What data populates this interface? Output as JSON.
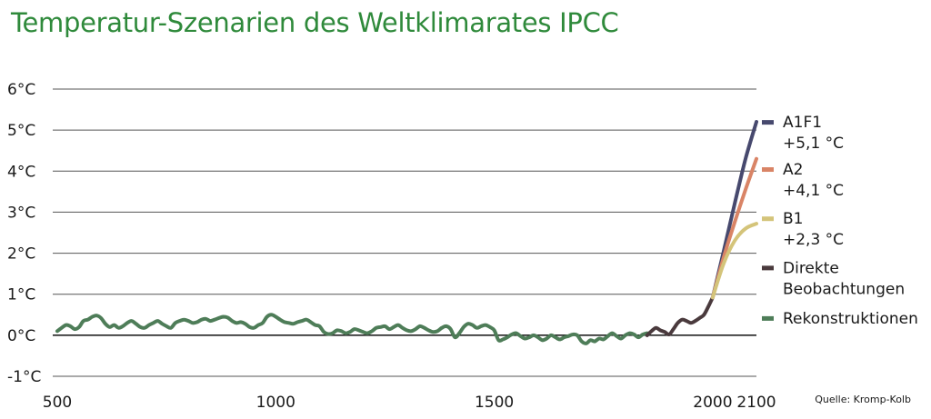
{
  "title": "Temperatur-Szenarien des Weltklimarates IPCC",
  "source": "Quelle: Kromp-Kolb",
  "colors": {
    "title": "#2f8a3b",
    "reconstruction": "#4e7d58",
    "observation": "#4a3a3d",
    "A1F1": "#47496e",
    "A2": "#d98466",
    "B1": "#d4c47a",
    "grid": "#333333"
  },
  "chart_data": {
    "type": "line",
    "title": "Temperatur-Szenarien des Weltklimarates IPCC",
    "xlabel": "",
    "ylabel": "",
    "xlim": [
      500,
      2100
    ],
    "ylim": [
      -1,
      6
    ],
    "x_ticks": [
      {
        "value": 500,
        "label": "500"
      },
      {
        "value": 1000,
        "label": "1000"
      },
      {
        "value": 1500,
        "label": "1500"
      },
      {
        "value": 2000,
        "label": "2000"
      },
      {
        "value": 2100,
        "label": "2100"
      }
    ],
    "y_ticks": [
      {
        "value": -1,
        "label": "-1°C"
      },
      {
        "value": 0,
        "label": "0°C"
      },
      {
        "value": 1,
        "label": "1°C"
      },
      {
        "value": 2,
        "label": "2°C"
      },
      {
        "value": 3,
        "label": "3°C"
      },
      {
        "value": 4,
        "label": "4°C"
      },
      {
        "value": 5,
        "label": "5°C"
      },
      {
        "value": 6,
        "label": "6°C"
      }
    ],
    "grid": "horizontal",
    "legend_position": "right",
    "series": [
      {
        "name": "Rekonstruktionen",
        "color_key": "reconstruction",
        "x": [
          500,
          510,
          520,
          530,
          540,
          550,
          560,
          570,
          580,
          590,
          600,
          610,
          620,
          630,
          640,
          650,
          660,
          670,
          680,
          690,
          700,
          710,
          720,
          730,
          740,
          750,
          760,
          770,
          780,
          790,
          800,
          810,
          820,
          830,
          840,
          850,
          860,
          870,
          880,
          890,
          900,
          910,
          920,
          930,
          940,
          950,
          960,
          970,
          980,
          990,
          1000,
          1010,
          1020,
          1030,
          1040,
          1050,
          1060,
          1070,
          1080,
          1090,
          1100,
          1110,
          1120,
          1130,
          1140,
          1150,
          1160,
          1170,
          1180,
          1190,
          1200,
          1210,
          1220,
          1230,
          1240,
          1250,
          1260,
          1270,
          1280,
          1290,
          1300,
          1310,
          1320,
          1330,
          1340,
          1350,
          1360,
          1370,
          1380,
          1390,
          1400,
          1410,
          1420,
          1430,
          1440,
          1450,
          1460,
          1470,
          1480,
          1490,
          1500,
          1510,
          1520,
          1530,
          1540,
          1550,
          1560,
          1570,
          1580,
          1590,
          1600,
          1610,
          1620,
          1630,
          1640,
          1650,
          1660,
          1670,
          1680,
          1690,
          1700,
          1710,
          1720,
          1730,
          1740,
          1750,
          1760,
          1770,
          1780,
          1790,
          1800,
          1810,
          1820,
          1830,
          1840,
          1850
        ],
        "values": [
          0.1,
          0.18,
          0.25,
          0.22,
          0.15,
          0.2,
          0.35,
          0.38,
          0.45,
          0.48,
          0.42,
          0.28,
          0.2,
          0.25,
          0.18,
          0.22,
          0.3,
          0.35,
          0.28,
          0.2,
          0.18,
          0.25,
          0.3,
          0.35,
          0.28,
          0.22,
          0.18,
          0.3,
          0.35,
          0.38,
          0.35,
          0.3,
          0.32,
          0.38,
          0.4,
          0.35,
          0.38,
          0.42,
          0.45,
          0.43,
          0.35,
          0.3,
          0.32,
          0.28,
          0.2,
          0.18,
          0.25,
          0.3,
          0.45,
          0.5,
          0.45,
          0.38,
          0.32,
          0.3,
          0.28,
          0.32,
          0.35,
          0.38,
          0.32,
          0.25,
          0.22,
          0.08,
          0.03,
          0.05,
          0.12,
          0.1,
          0.05,
          0.08,
          0.15,
          0.12,
          0.08,
          0.05,
          0.1,
          0.18,
          0.2,
          0.22,
          0.15,
          0.2,
          0.25,
          0.18,
          0.12,
          0.1,
          0.15,
          0.22,
          0.18,
          0.12,
          0.08,
          0.1,
          0.18,
          0.22,
          0.15,
          -0.05,
          0.05,
          0.2,
          0.28,
          0.25,
          0.18,
          0.22,
          0.25,
          0.2,
          0.12,
          -0.12,
          -0.1,
          -0.05,
          0.02,
          0.05,
          -0.02,
          -0.08,
          -0.05,
          0.0,
          -0.05,
          -0.12,
          -0.08,
          0.0,
          -0.05,
          -0.1,
          -0.05,
          -0.02,
          0.02,
          0.0,
          -0.15,
          -0.2,
          -0.12,
          -0.15,
          -0.08,
          -0.1,
          -0.02,
          0.05,
          -0.02,
          -0.08,
          0.0,
          0.05,
          0.02,
          -0.05,
          0.02,
          0.05
        ]
      },
      {
        "name": "Direkte Beobachtungen",
        "color_key": "observation",
        "x": [
          1850,
          1860,
          1870,
          1880,
          1890,
          1900,
          1910,
          1920,
          1930,
          1940,
          1950,
          1960,
          1970,
          1980,
          1990,
          2000
        ],
        "values": [
          0.0,
          0.1,
          0.18,
          0.12,
          0.08,
          0.02,
          0.15,
          0.3,
          0.38,
          0.35,
          0.3,
          0.35,
          0.42,
          0.5,
          0.7,
          0.92
        ]
      },
      {
        "name": "A1F1",
        "label": "A1F1",
        "sublabel": "+5,1 °C",
        "color_key": "A1F1",
        "x": [
          2000,
          2025,
          2050,
          2075,
          2100
        ],
        "values": [
          0.92,
          2.05,
          3.2,
          4.3,
          5.2
        ]
      },
      {
        "name": "A2",
        "label": "A2",
        "sublabel": "+4,1 °C",
        "color_key": "A2",
        "x": [
          2000,
          2025,
          2050,
          2075,
          2100
        ],
        "values": [
          0.92,
          1.9,
          2.75,
          3.55,
          4.3
        ]
      },
      {
        "name": "B1",
        "label": "B1",
        "sublabel": "+2,3 °C",
        "color_key": "B1",
        "x": [
          2000,
          2025,
          2050,
          2075,
          2100
        ],
        "values": [
          0.92,
          1.75,
          2.3,
          2.6,
          2.72
        ]
      }
    ],
    "legend": [
      {
        "series": "A1F1",
        "lines": [
          "A1F1",
          "+5,1 °C"
        ],
        "color_key": "A1F1",
        "anchor_value": 5.2
      },
      {
        "series": "A2",
        "lines": [
          "A2",
          "+4,1 °C"
        ],
        "color_key": "A2",
        "anchor_value": 4.05
      },
      {
        "series": "B1",
        "lines": [
          "B1",
          "+2,3 °C"
        ],
        "color_key": "B1",
        "anchor_value": 2.85
      },
      {
        "series": "Direkte Beobachtungen",
        "lines": [
          "Direkte",
          "Beobachtungen"
        ],
        "color_key": "observation",
        "anchor_value": 1.65
      },
      {
        "series": "Rekonstruktionen",
        "lines": [
          "Rekonstruktionen"
        ],
        "color_key": "reconstruction",
        "anchor_value": 0.42
      }
    ]
  }
}
